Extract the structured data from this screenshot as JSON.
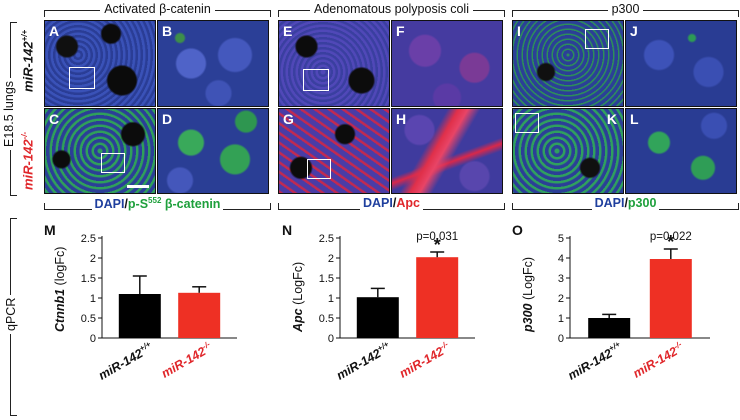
{
  "columns": [
    {
      "title": "Activated β-catenin"
    },
    {
      "title": "Adenomatous polyposis coli"
    },
    {
      "title": "p300"
    }
  ],
  "row_labels": {
    "group": "E18.5 lungs",
    "top": "miR-142",
    "top_sup": "+/+",
    "bottom": "miR-142",
    "bottom_sup": "-/-"
  },
  "panels": [
    "A",
    "B",
    "C",
    "D",
    "E",
    "F",
    "G",
    "H",
    "I",
    "J",
    "K",
    "L"
  ],
  "stains": {
    "col1": {
      "dapi": "DAPI",
      "slash": "/",
      "marker": "p-S",
      "marker_sup": "552",
      "marker_rest": " β-catenin"
    },
    "col2": {
      "dapi": "DAPI",
      "slash": "/",
      "marker": "Apc"
    },
    "col3": {
      "dapi": "DAPI",
      "slash": "/",
      "marker": "p300"
    }
  },
  "qpcr_label": "qPCR",
  "colors": {
    "wildtype": "#000000",
    "knockout": "#ee3024",
    "dapi_blue": "#1f3f9e",
    "green": "#1ea03c"
  },
  "chart_data": [
    {
      "type": "bar",
      "panel": "M",
      "ylabel_gene": "Ctnnb1",
      "ylabel_unit": " (logFc)",
      "ylim": [
        0,
        2.5
      ],
      "yticks": [
        "0",
        "0.5",
        "1",
        "1.5",
        "2",
        "2.5"
      ],
      "categories": [
        {
          "name": "miR-142",
          "sup": "+/+"
        },
        {
          "name": "miR-142",
          "sup": "-/-"
        }
      ],
      "values": [
        1.1,
        1.13
      ],
      "errors": [
        0.45,
        0.15
      ],
      "pvalue": ""
    },
    {
      "type": "bar",
      "panel": "N",
      "ylabel_gene": "Apc",
      "ylabel_unit": " (LogFc)",
      "ylim": [
        0,
        2.5
      ],
      "yticks": [
        "0",
        "0.5",
        "1",
        "1.5",
        "2",
        "2.5"
      ],
      "categories": [
        {
          "name": "miR-142",
          "sup": "+/+"
        },
        {
          "name": "miR-142",
          "sup": "-/-"
        }
      ],
      "values": [
        1.02,
        2.02
      ],
      "errors": [
        0.22,
        0.13
      ],
      "pvalue": "p=0.031",
      "star": "*"
    },
    {
      "type": "bar",
      "panel": "O",
      "ylabel_gene": "p300",
      "ylabel_unit": " (LogFc)",
      "ylim": [
        0,
        5
      ],
      "yticks": [
        "0",
        "1",
        "2",
        "3",
        "4",
        "5"
      ],
      "categories": [
        {
          "name": "miR-142",
          "sup": "+/+"
        },
        {
          "name": "miR-142",
          "sup": "-/-"
        }
      ],
      "values": [
        1.0,
        3.95
      ],
      "errors": [
        0.18,
        0.5
      ],
      "pvalue": "p=0.022",
      "star": "*"
    }
  ]
}
